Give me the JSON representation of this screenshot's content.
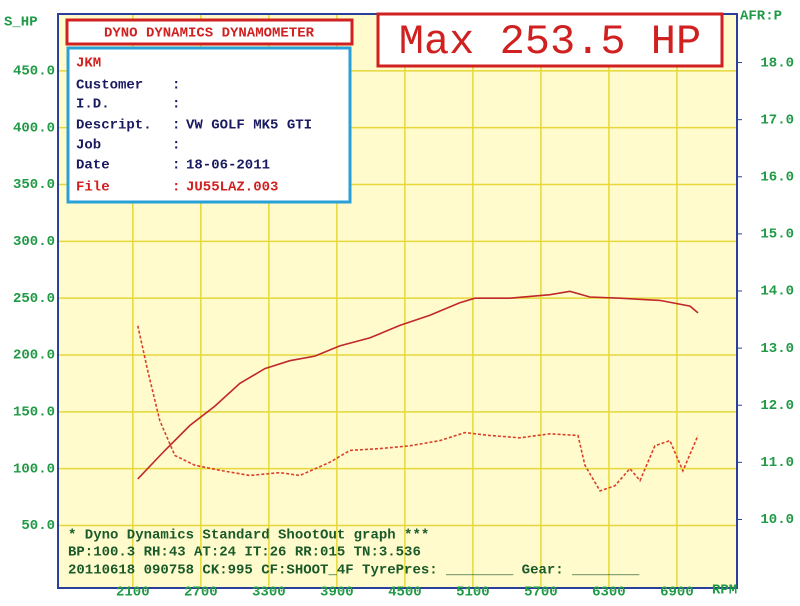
{
  "chart_data": {
    "type": "line",
    "y_label": "S_HP",
    "y2_label": "AFR:P",
    "x_label": "RPM",
    "xlim": [
      1440,
      7430
    ],
    "xticks": [
      2100,
      2700,
      3300,
      3900,
      4500,
      5100,
      5700,
      6300,
      6900
    ],
    "ylim": [
      -5,
      500
    ],
    "yticks": [
      {
        "value": 50,
        "label": "50.0"
      },
      {
        "value": 100,
        "label": "100.0"
      },
      {
        "value": 150,
        "label": "150.0"
      },
      {
        "value": 200,
        "label": "200.0"
      },
      {
        "value": 250,
        "label": "250.0"
      },
      {
        "value": 300,
        "label": "300.0"
      },
      {
        "value": 350,
        "label": "350.0"
      },
      {
        "value": 400,
        "label": "400.0"
      },
      {
        "value": 450,
        "label": "450.0"
      }
    ],
    "y2lim": [
      8.8,
      18.85
    ],
    "y2ticks": [
      {
        "value": 10,
        "label": "10.0"
      },
      {
        "value": 11,
        "label": "11.0"
      },
      {
        "value": 12,
        "label": "12.0"
      },
      {
        "value": 13,
        "label": "13.0"
      },
      {
        "value": 14,
        "label": "14.0"
      },
      {
        "value": 15,
        "label": "15.0"
      },
      {
        "value": 16,
        "label": "16.0"
      },
      {
        "value": 17,
        "label": "17.0"
      },
      {
        "value": 18,
        "label": "18.0"
      }
    ],
    "grid": true,
    "series": [
      {
        "color": "#c0282a",
        "dash": false,
        "x": [
          2144,
          2382,
          2603,
          2824,
          3044,
          3265,
          3485,
          3706,
          3926,
          4191,
          4456,
          4721,
          4985,
          5118,
          5427,
          5780,
          5956,
          6132,
          6397,
          6750,
          7015,
          7086
        ],
        "values": [
          91,
          116,
          138,
          155,
          175,
          188,
          195,
          199,
          208,
          215,
          226,
          235,
          246,
          250,
          250,
          253,
          256,
          251,
          250,
          248,
          243,
          237
        ]
      },
      {
        "color": "#d8402a",
        "dash": true,
        "axis": "y2",
        "x": [
          2144,
          2232,
          2338,
          2471,
          2647,
          2868,
          3132,
          3397,
          3573,
          3838,
          4015,
          4280,
          4544,
          4809,
          5030,
          5250,
          5515,
          5780,
          6027,
          6088,
          6221,
          6353,
          6485,
          6574,
          6706,
          6838,
          6953,
          7086
        ],
        "values": [
          13.39,
          12.6,
          11.73,
          11.12,
          10.95,
          10.86,
          10.77,
          10.82,
          10.77,
          11.0,
          11.21,
          11.24,
          11.29,
          11.38,
          11.52,
          11.47,
          11.43,
          11.5,
          11.47,
          10.95,
          10.5,
          10.59,
          10.89,
          10.68,
          11.29,
          11.38,
          10.85,
          11.47
        ]
      }
    ]
  },
  "header": {
    "title": "DYNO DYNAMICS DYNAMOMETER",
    "max": "Max 253.5 HP"
  },
  "info_box": {
    "name": "JKM",
    "rows": [
      {
        "label": "Customer",
        "sep": ":"
      },
      {
        "label": "I.D.",
        "sep": ":"
      },
      {
        "label": "Descript.",
        "sep": ":",
        "value": "VW GOLF MK5 GTI"
      },
      {
        "label": "Job",
        "sep": ":"
      },
      {
        "label": "Date",
        "sep": ":",
        "value": "18-06-2011"
      },
      {
        "label": "File",
        "sep": ":",
        "value": "JU55LAZ.003"
      }
    ]
  },
  "footer": [
    "* Dyno Dynamics Standard ShootOut graph ***",
    "BP:100.3 RH:43 AT:24 IT:26 RR:015 TN:3.536",
    "20110618 090758 CK:995 CF:SHOOT_4F TyrePres: ________ Gear: ________"
  ]
}
